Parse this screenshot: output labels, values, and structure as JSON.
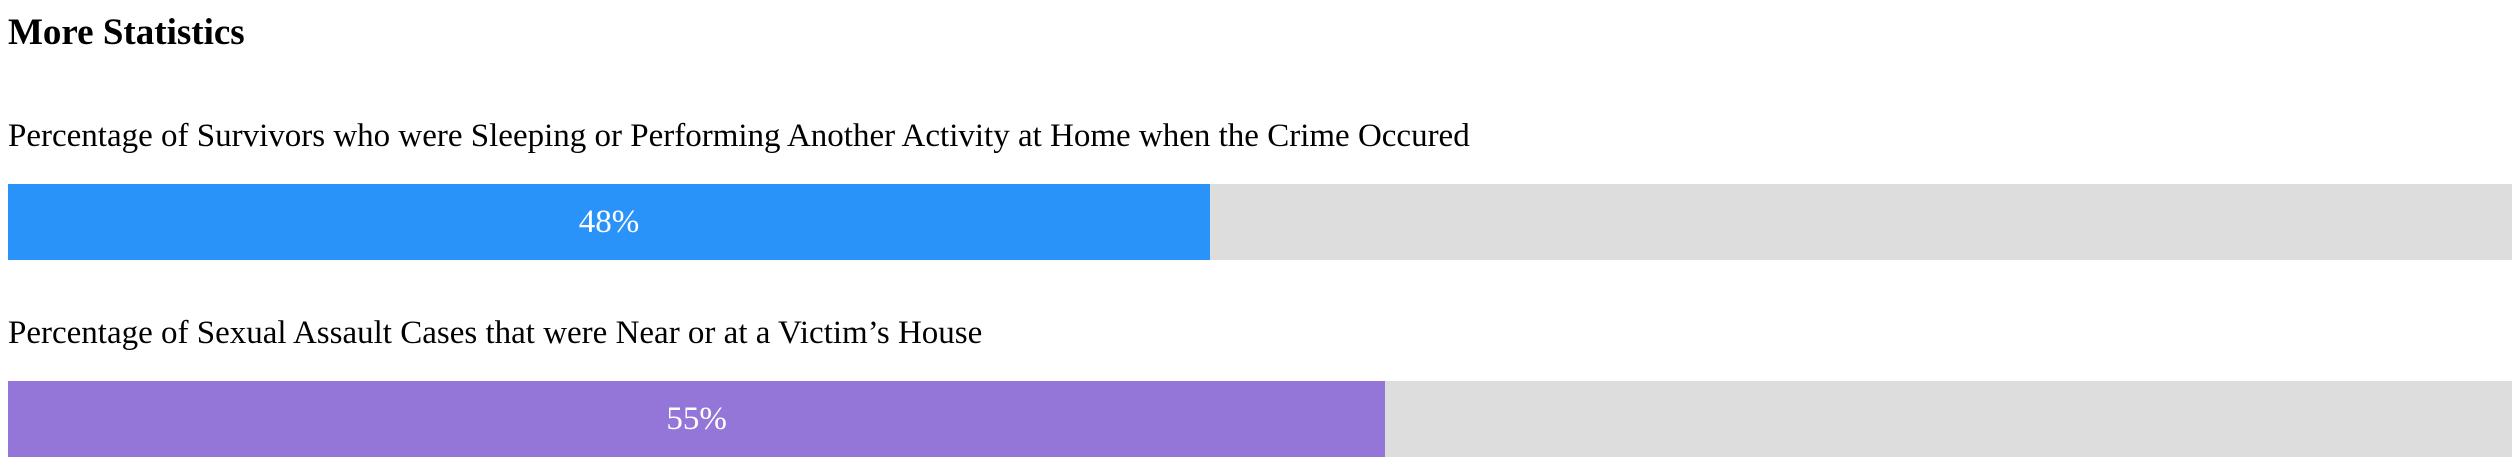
{
  "section": {
    "title": "More Statistics"
  },
  "stats": [
    {
      "label": "Percentage of Survivors who were Sleeping or Performing Another Activity at Home when the Crime Occured",
      "percent_text": "48%",
      "fill_fraction": 0.48,
      "color": "#2a93fa"
    },
    {
      "label": "Percentage of Sexual Assault Cases that were Near or at a Victim’s House",
      "percent_text": "55%",
      "fill_fraction": 0.55,
      "color": "#9376d8"
    }
  ],
  "track_color": "#dddddd"
}
